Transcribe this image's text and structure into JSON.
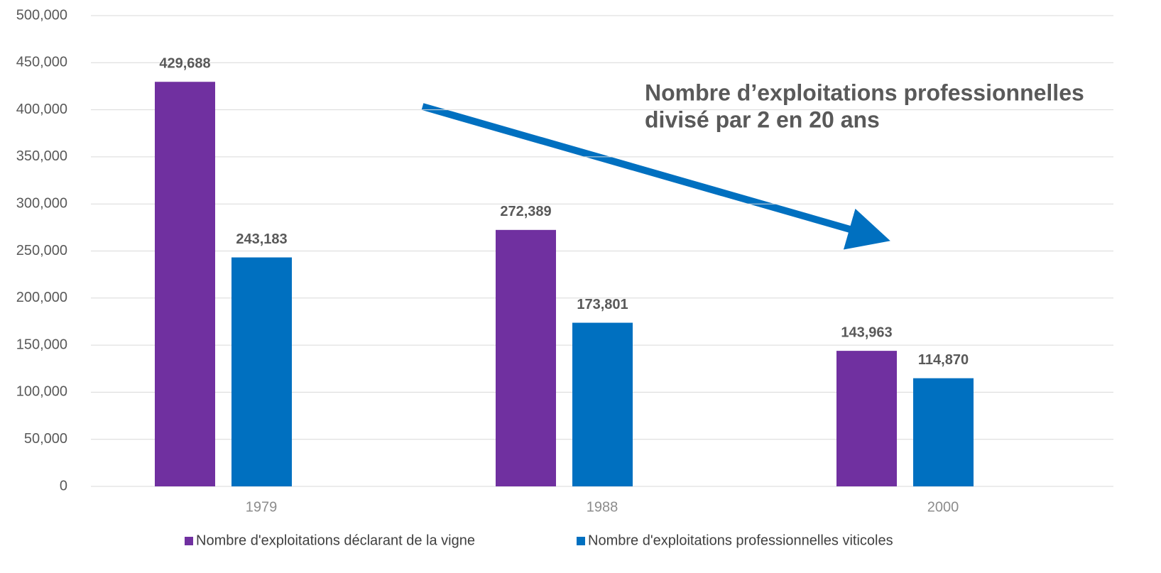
{
  "chart_data": {
    "type": "bar",
    "categories": [
      "1979",
      "1988",
      "2000"
    ],
    "series": [
      {
        "name": "Nombre d'exploitations déclarant de la vigne",
        "color": "#7030a0",
        "values": [
          429688,
          272389,
          143963
        ],
        "value_labels": [
          "429,688",
          "272,389",
          "143,963"
        ]
      },
      {
        "name": "Nombre d'exploitations professionnelles viticoles",
        "color": "#0070c0",
        "values": [
          243183,
          173801,
          114870
        ],
        "value_labels": [
          "243,183",
          "173,801",
          "114,870"
        ]
      }
    ],
    "ylim": [
      0,
      500000
    ],
    "yticks": [
      0,
      {
        "value": 50000,
        "label": "50,000"
      },
      {
        "value": 100000,
        "label": "100,000"
      },
      {
        "value": 150000,
        "label": "150,000"
      },
      {
        "value": 200000,
        "label": "200,000"
      },
      {
        "value": 250000,
        "label": "250,000"
      },
      {
        "value": 300000,
        "label": "300,000"
      },
      {
        "value": 350000,
        "label": "350,000"
      },
      {
        "value": 400000,
        "label": "400,000"
      },
      {
        "value": 450000,
        "label": "450,000"
      },
      {
        "value": 500000,
        "label": "500,000"
      }
    ],
    "grid": true,
    "legend": "bottom",
    "annotation": [
      "Nombre d’exploitations professionnelles",
      "divisé par 2 en 20 ans"
    ]
  }
}
